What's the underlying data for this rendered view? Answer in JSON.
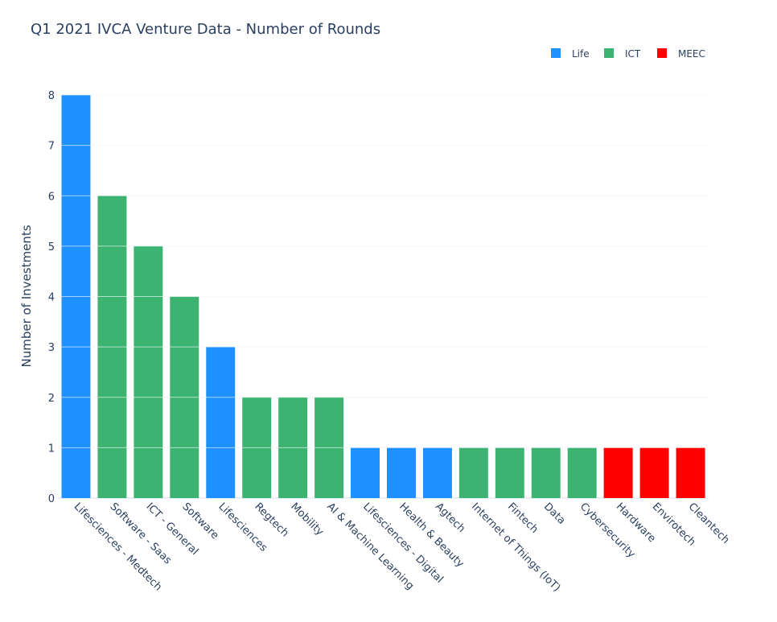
{
  "chart_data": {
    "type": "bar",
    "title": "Q1 2021 IVCA Venture Data - Number of Rounds",
    "xlabel": "",
    "ylabel": "Number of Investments",
    "ylim": [
      0,
      8
    ],
    "yticks": [
      "0",
      "1",
      "2",
      "3",
      "4",
      "5",
      "6",
      "7",
      "8"
    ],
    "grid": true,
    "legend_position": "top-right",
    "series": [
      {
        "name": "Life",
        "color": "#1E90FF"
      },
      {
        "name": "ICT",
        "color": "#3CB371"
      },
      {
        "name": "MEEC",
        "color": "#FF0000"
      }
    ],
    "categories": [
      "Lifesciences - Medtech",
      "Software - Saas",
      "ICT - General",
      "Software",
      "Lifesciences",
      "Regtech",
      "Mobility",
      "AI & Machine Learning",
      "Lifesciences - Digital",
      "Health & Beauty",
      "Agtech",
      "Internet of Things (IoT)",
      "Fintech",
      "Data",
      "Cybersecurity",
      "Hardware",
      "Envirotech",
      "Cleantech"
    ],
    "values": [
      8,
      6,
      5,
      4,
      3,
      2,
      2,
      2,
      1,
      1,
      1,
      1,
      1,
      1,
      1,
      1,
      1,
      1
    ],
    "groups": [
      "Life",
      "ICT",
      "ICT",
      "ICT",
      "Life",
      "ICT",
      "ICT",
      "ICT",
      "Life",
      "Life",
      "Life",
      "ICT",
      "ICT",
      "ICT",
      "ICT",
      "MEEC",
      "MEEC",
      "MEEC"
    ]
  }
}
